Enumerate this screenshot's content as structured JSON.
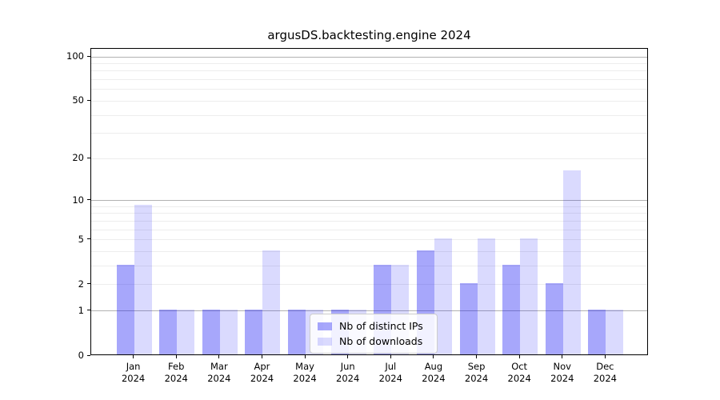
{
  "chart_data": {
    "type": "bar",
    "title": "argusDS.backtesting.engine 2024",
    "xlabel": "",
    "ylabel": "",
    "year_label": "2024",
    "categories": [
      "Jan",
      "Feb",
      "Mar",
      "Apr",
      "May",
      "Jun",
      "Jul",
      "Aug",
      "Sep",
      "Oct",
      "Nov",
      "Dec"
    ],
    "series": [
      {
        "name": "Nb of distinct IPs",
        "color": "rgba(10,10,245,0.36)",
        "values": [
          3,
          1,
          1,
          1,
          1,
          1,
          3,
          4,
          2,
          3,
          2,
          1
        ]
      },
      {
        "name": "Nb of downloads",
        "color": "rgba(10,10,245,0.15)",
        "values": [
          9,
          1,
          1,
          4,
          1,
          1,
          3,
          5,
          5,
          5,
          16,
          1
        ]
      }
    ],
    "y_scale": "log1p",
    "ylim": [
      0,
      114
    ],
    "y_tick_labels": [
      0,
      1,
      2,
      5,
      10,
      20,
      50,
      100
    ],
    "y_major_gridlines": [
      1,
      10,
      100
    ],
    "y_minor_gridlines": [
      2,
      3,
      4,
      5,
      6,
      7,
      8,
      9,
      20,
      30,
      40,
      50,
      60,
      70,
      80,
      90
    ],
    "grid": true,
    "legend_position": "lower center"
  },
  "colors": {
    "major_grid": "#b2b2b2",
    "minor_grid": "#ededed",
    "spine": "#000000",
    "background": "#ffffff"
  }
}
